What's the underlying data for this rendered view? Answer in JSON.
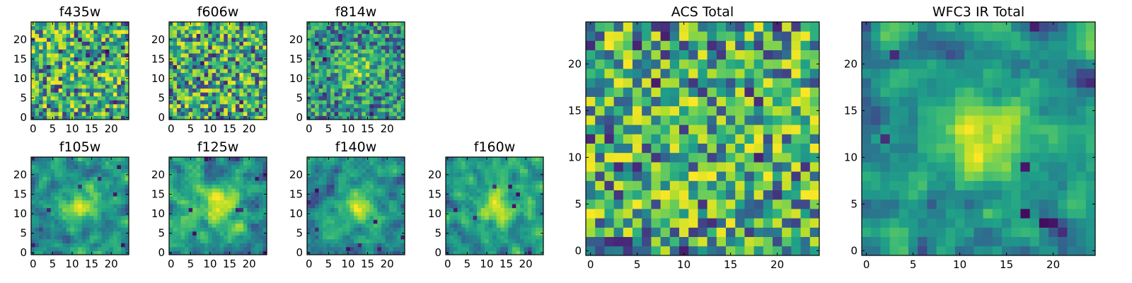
{
  "chart_data": [
    {
      "id": "f435w",
      "type": "heatmap",
      "title": "f435w",
      "xticks": [
        "0",
        "5",
        "10",
        "15",
        "20"
      ],
      "yticks": [
        "0",
        "5",
        "10",
        "15",
        "20"
      ],
      "size": 25,
      "xlim": [
        0,
        25
      ],
      "ylim": [
        0,
        25
      ],
      "colormap": "viridis",
      "pattern": "noise",
      "seed": 11
    },
    {
      "id": "f606w",
      "type": "heatmap",
      "title": "f606w",
      "xticks": [
        "0",
        "5",
        "10",
        "15",
        "20"
      ],
      "yticks": [
        "0",
        "5",
        "10",
        "15",
        "20"
      ],
      "size": 25,
      "xlim": [
        0,
        25
      ],
      "ylim": [
        0,
        25
      ],
      "colormap": "viridis",
      "pattern": "noise",
      "seed": 23
    },
    {
      "id": "f814w",
      "type": "heatmap",
      "title": "f814w",
      "xticks": [
        "0",
        "5",
        "10",
        "15",
        "20"
      ],
      "yticks": [
        "0",
        "5",
        "10",
        "15",
        "20"
      ],
      "size": 25,
      "xlim": [
        0,
        25
      ],
      "ylim": [
        0,
        25
      ],
      "colormap": "viridis",
      "pattern": "noise-blob",
      "seed": 37
    },
    {
      "id": "f105w",
      "type": "heatmap",
      "title": "f105w",
      "xticks": [
        "0",
        "5",
        "10",
        "15",
        "20"
      ],
      "yticks": [
        "0",
        "5",
        "10",
        "15",
        "20"
      ],
      "size": 25,
      "xlim": [
        0,
        25
      ],
      "ylim": [
        0,
        25
      ],
      "colormap": "viridis",
      "pattern": "smooth-blob",
      "seed": 41
    },
    {
      "id": "f125w",
      "type": "heatmap",
      "title": "f125w",
      "xticks": [
        "0",
        "5",
        "10",
        "15",
        "20"
      ],
      "yticks": [
        "0",
        "5",
        "10",
        "15",
        "20"
      ],
      "size": 25,
      "xlim": [
        0,
        25
      ],
      "ylim": [
        0,
        25
      ],
      "colormap": "viridis",
      "pattern": "smooth-blob",
      "seed": 53
    },
    {
      "id": "f140w",
      "type": "heatmap",
      "title": "f140w",
      "xticks": [
        "0",
        "5",
        "10",
        "15",
        "20"
      ],
      "yticks": [
        "0",
        "5",
        "10",
        "15",
        "20"
      ],
      "size": 25,
      "xlim": [
        0,
        25
      ],
      "ylim": [
        0,
        25
      ],
      "colormap": "viridis",
      "pattern": "smooth-blob",
      "seed": 67
    },
    {
      "id": "f160w",
      "type": "heatmap",
      "title": "f160w",
      "xticks": [
        "0",
        "5",
        "10",
        "15",
        "20"
      ],
      "yticks": [
        "0",
        "5",
        "10",
        "15",
        "20"
      ],
      "size": 25,
      "xlim": [
        0,
        25
      ],
      "ylim": [
        0,
        25
      ],
      "colormap": "viridis",
      "pattern": "smooth-blob",
      "seed": 79
    },
    {
      "id": "acs-total",
      "type": "heatmap",
      "title": "ACS Total",
      "xticks": [
        "0",
        "5",
        "10",
        "15",
        "20"
      ],
      "yticks": [
        "0",
        "5",
        "10",
        "15",
        "20"
      ],
      "size": 25,
      "xlim": [
        0,
        25
      ],
      "ylim": [
        0,
        25
      ],
      "colormap": "viridis",
      "pattern": "noise",
      "seed": 97
    },
    {
      "id": "wfc3-ir-total",
      "type": "heatmap",
      "title": "WFC3 IR Total",
      "xticks": [
        "0",
        "5",
        "10",
        "15",
        "20"
      ],
      "yticks": [
        "0",
        "5",
        "10",
        "15",
        "20"
      ],
      "size": 25,
      "xlim": [
        0,
        25
      ],
      "ylim": [
        0,
        25
      ],
      "colormap": "viridis",
      "pattern": "smooth-blob",
      "seed": 113
    }
  ]
}
